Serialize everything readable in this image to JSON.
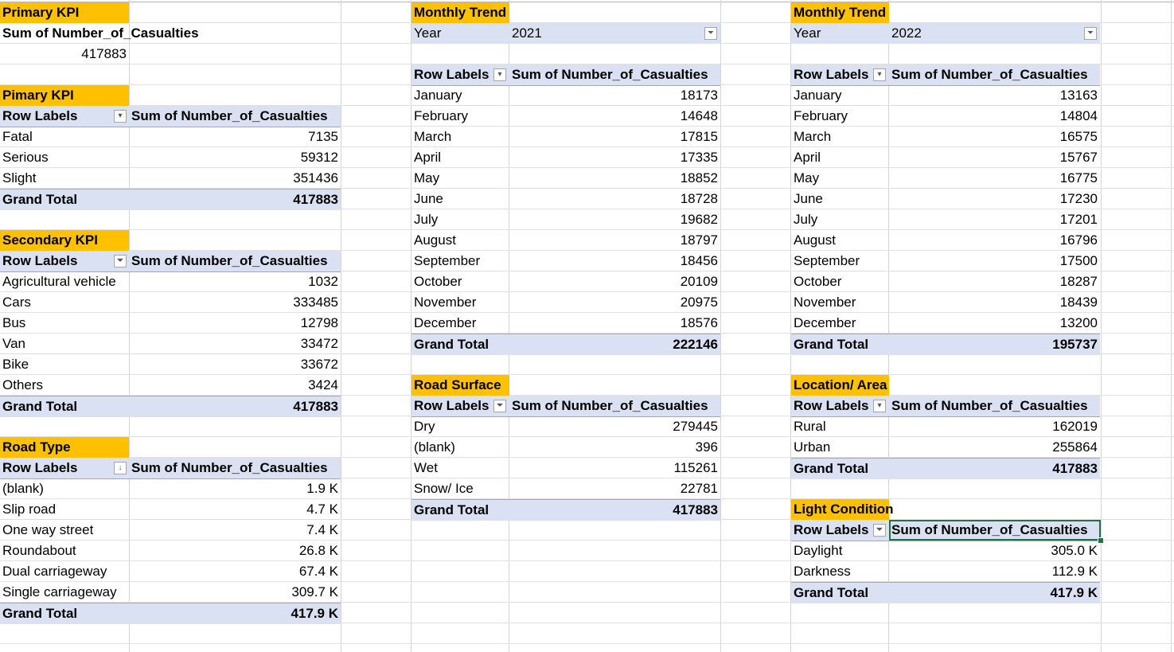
{
  "primary_kpi": {
    "title": "Primary KPI",
    "label": "Sum of Number_of_Casualties",
    "value": "417883"
  },
  "severity": {
    "title": "Pimary KPI",
    "row_labels": "Row Labels",
    "value_header": "Sum of Number_of_Casualties",
    "rows": [
      {
        "label": "Fatal",
        "value": "7135"
      },
      {
        "label": "Serious",
        "value": "59312"
      },
      {
        "label": "Slight",
        "value": "351436"
      }
    ],
    "total_label": "Grand Total",
    "total_value": "417883"
  },
  "vehicle": {
    "title": "Secondary KPI",
    "row_labels": "Row Labels",
    "value_header": "Sum of Number_of_Casualties",
    "rows": [
      {
        "label": "Agricultural vehicle",
        "value": "1032"
      },
      {
        "label": "Cars",
        "value": "333485"
      },
      {
        "label": "Bus",
        "value": "12798"
      },
      {
        "label": "Van",
        "value": "33472"
      },
      {
        "label": "Bike",
        "value": "33672"
      },
      {
        "label": "Others",
        "value": "3424"
      }
    ],
    "total_label": "Grand Total",
    "total_value": "417883"
  },
  "road_type": {
    "title": "Road Type",
    "row_labels": "Row Labels",
    "value_header": "Sum of Number_of_Casualties",
    "rows": [
      {
        "label": "(blank)",
        "value": "1.9 K"
      },
      {
        "label": "Slip road",
        "value": "4.7 K"
      },
      {
        "label": "One way street",
        "value": "7.4 K"
      },
      {
        "label": "Roundabout",
        "value": "26.8 K"
      },
      {
        "label": "Dual carriageway",
        "value": "67.4 K"
      },
      {
        "label": "Single carriageway",
        "value": "309.7 K"
      }
    ],
    "total_label": "Grand Total",
    "total_value": "417.9 K"
  },
  "trend_2021": {
    "title": "Monthly Trend",
    "filter_label": "Year",
    "filter_value": "2021",
    "row_labels": "Row Labels",
    "value_header": "Sum of Number_of_Casualties",
    "rows": [
      {
        "label": "January",
        "value": "18173"
      },
      {
        "label": "February",
        "value": "14648"
      },
      {
        "label": "March",
        "value": "17815"
      },
      {
        "label": "April",
        "value": "17335"
      },
      {
        "label": "May",
        "value": "18852"
      },
      {
        "label": "June",
        "value": "18728"
      },
      {
        "label": "July",
        "value": "19682"
      },
      {
        "label": "August",
        "value": "18797"
      },
      {
        "label": "September",
        "value": "18456"
      },
      {
        "label": "October",
        "value": "20109"
      },
      {
        "label": "November",
        "value": "20975"
      },
      {
        "label": "December",
        "value": "18576"
      }
    ],
    "total_label": "Grand Total",
    "total_value": "222146"
  },
  "road_surface": {
    "title": "Road Surface",
    "row_labels": "Row Labels",
    "value_header": "Sum of Number_of_Casualties",
    "rows": [
      {
        "label": "Dry",
        "value": "279445"
      },
      {
        "label": "(blank)",
        "value": "396"
      },
      {
        "label": "Wet",
        "value": "115261"
      },
      {
        "label": "Snow/ Ice",
        "value": "22781"
      }
    ],
    "total_label": "Grand Total",
    "total_value": "417883"
  },
  "trend_2022": {
    "title": "Monthly Trend",
    "filter_label": "Year",
    "filter_value": "2022",
    "row_labels": "Row Labels",
    "value_header": "Sum of Number_of_Casualties",
    "rows": [
      {
        "label": "January",
        "value": "13163"
      },
      {
        "label": "February",
        "value": "14804"
      },
      {
        "label": "March",
        "value": "16575"
      },
      {
        "label": "April",
        "value": "15767"
      },
      {
        "label": "May",
        "value": "16775"
      },
      {
        "label": "June",
        "value": "17230"
      },
      {
        "label": "July",
        "value": "17201"
      },
      {
        "label": "August",
        "value": "16796"
      },
      {
        "label": "September",
        "value": "17500"
      },
      {
        "label": "October",
        "value": "18287"
      },
      {
        "label": "November",
        "value": "18439"
      },
      {
        "label": "December",
        "value": "13200"
      }
    ],
    "total_label": "Grand Total",
    "total_value": "195737"
  },
  "location": {
    "title": "Location/ Area",
    "row_labels": "Row Labels",
    "value_header": "Sum of Number_of_Casualties",
    "rows": [
      {
        "label": "Rural",
        "value": "162019"
      },
      {
        "label": "Urban",
        "value": "255864"
      }
    ],
    "total_label": "Grand Total",
    "total_value": "417883"
  },
  "light": {
    "title": "Light Condition",
    "row_labels": "Row Labels",
    "value_header": "Sum of Number_of_Casualties",
    "rows": [
      {
        "label": "Daylight",
        "value": "305.0 K"
      },
      {
        "label": "Darkness",
        "value": "112.9 K"
      }
    ],
    "total_label": "Grand Total",
    "total_value": "417.9 K"
  },
  "icons": {
    "dropdown": "chevron-down-icon",
    "filter": "filter-icon",
    "sort": "sort-descending-icon"
  },
  "colors": {
    "title_fill": "#ffc000",
    "header_fill": "#d9e1f2",
    "border_blue": "#8ea9db",
    "selection": "#217346"
  }
}
